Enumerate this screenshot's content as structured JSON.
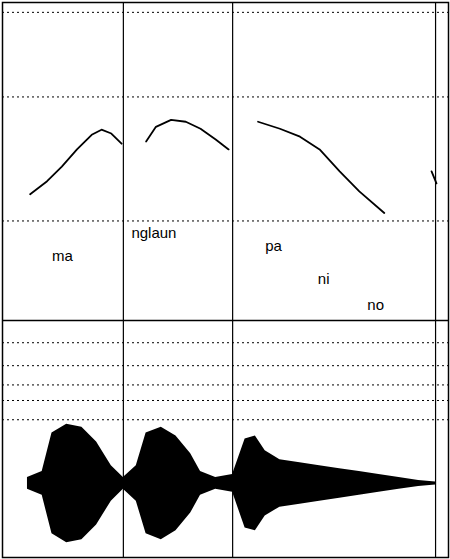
{
  "chart_data": [
    {
      "type": "line",
      "x": [
        6.2,
        10,
        13.3,
        16.7,
        20,
        22.2,
        24.4,
        26.7,
        null,
        32.2,
        34.4,
        37.8,
        41.1,
        44.4,
        47.8,
        50.7,
        null,
        57.3,
        62.2,
        66.7,
        71.1,
        75.6,
        80,
        85.6,
        null,
        96.2,
        97.3
      ],
      "values": [
        39.7,
        43.8,
        48.4,
        53.8,
        58.4,
        60,
        58.8,
        55.6,
        null,
        56.3,
        60.9,
        63.1,
        62.5,
        60.3,
        56.9,
        53.8,
        null,
        62.5,
        60.3,
        57.8,
        53.8,
        46.9,
        40.6,
        33.8,
        null,
        46.9,
        43.1
      ],
      "color": "#000000",
      "xlim": [
        0,
        100
      ],
      "ylim": [
        0,
        100
      ],
      "xticks": [
        27.1,
        51.6,
        97.1
      ],
      "yticks": [
        31.3,
        70.3,
        96.9
      ],
      "grid": true,
      "tick_labels": false,
      "annotations": [
        {
          "text": "ma",
          "x": 11.1,
          "y": 20.3
        },
        {
          "text": "nglaun",
          "x": 28.9,
          "y": 27.5
        },
        {
          "text": "pa",
          "x": 58.9,
          "y": 23.4
        },
        {
          "text": "ni",
          "x": 70.7,
          "y": 13.1
        },
        {
          "text": "no",
          "x": 81.8,
          "y": 4.7
        }
      ]
    },
    {
      "type": "area",
      "x": [
        5.6,
        8.9,
        11.1,
        14.4,
        17.8,
        21.1,
        24.4,
        27.1,
        30,
        32.2,
        35.6,
        38.9,
        42.2,
        44.4,
        47.8,
        51.6,
        54.4,
        56.7,
        58.9,
        62.2,
        66.7,
        71.1,
        75.6,
        80,
        84.4,
        88.9,
        93.3,
        97.1
      ],
      "values": [
        0.08,
        0.16,
        0.68,
        0.8,
        0.76,
        0.56,
        0.24,
        0.08,
        0.24,
        0.68,
        0.76,
        0.64,
        0.4,
        0.16,
        0.08,
        0.12,
        0.6,
        0.64,
        0.44,
        0.32,
        0.28,
        0.24,
        0.2,
        0.16,
        0.12,
        0.08,
        0.04,
        0.02
      ],
      "color": "#000000",
      "xlim": [
        0,
        100
      ],
      "ylim": [
        -1,
        2.2
      ],
      "xticks": [
        27.1,
        51.6,
        97.1
      ],
      "yticks": [
        0.86,
        1.12,
        1.33,
        1.59,
        1.9
      ],
      "grid": true,
      "tick_labels": false
    }
  ]
}
